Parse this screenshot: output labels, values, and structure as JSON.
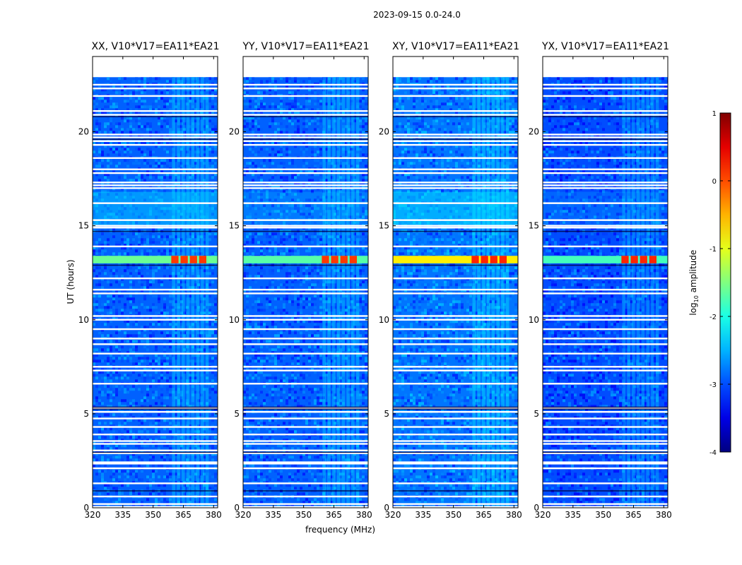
{
  "suptitle": "2023-09-15 0.0-24.0",
  "chart_data": {
    "type": "heatmap",
    "title": "2023-09-15 0.0-24.0",
    "xlabel": "frequency (MHz)",
    "ylabel": "UT (hours)",
    "xlim": [
      320,
      382
    ],
    "ylim": [
      0,
      24
    ],
    "data_time_range": [
      0,
      22.9
    ],
    "xticks": [
      320,
      335,
      350,
      365,
      380
    ],
    "yticks": [
      0,
      5,
      10,
      15,
      20
    ],
    "colorbar": {
      "label": "log10 amplitude",
      "label_main": "log",
      "label_sub": "10",
      "label_rest": " amplitude",
      "range": [
        -4,
        1
      ],
      "ticks": [
        1,
        0,
        -1,
        -2,
        -3,
        -4
      ],
      "colormap": "jet"
    },
    "rfi_band_mhz": [
      359,
      378
    ],
    "strong_rfi_time_hours": [
      13.0,
      13.4
    ],
    "flagged_time_rows_hours": [
      0.05,
      0.2,
      0.6,
      1.3,
      2.1,
      2.35,
      2.42,
      2.9,
      3.05,
      3.4,
      3.55,
      3.9,
      4.3,
      4.75,
      5.1,
      5.3,
      6.6,
      7.3,
      7.5,
      8.2,
      8.7,
      9.0,
      9.5,
      10.0,
      10.2,
      11.4,
      11.6,
      12.2,
      13.9,
      14.9,
      15.0,
      15.3,
      16.2,
      17.0,
      17.15,
      17.3,
      17.8,
      18.0,
      18.6,
      19.3,
      19.5,
      19.7,
      19.85,
      20.9,
      21.1,
      21.9,
      22.3,
      22.5
    ],
    "panels": [
      {
        "name": "XX, V10*V17=EA11*EA21",
        "base_level": -2.9,
        "rfi_level": 0.1,
        "stripe_level": -1.6
      },
      {
        "name": "YY, V10*V17=EA11*EA21",
        "base_level": -2.9,
        "rfi_level": 0.1,
        "stripe_level": -1.7
      },
      {
        "name": "XY, V10*V17=EA11*EA21",
        "base_level": -2.8,
        "rfi_level": 0.2,
        "stripe_level": -0.8
      },
      {
        "name": "YX, V10*V17=EA11*EA21",
        "base_level": -3.0,
        "rfi_level": 0.2,
        "stripe_level": -1.8
      }
    ]
  }
}
